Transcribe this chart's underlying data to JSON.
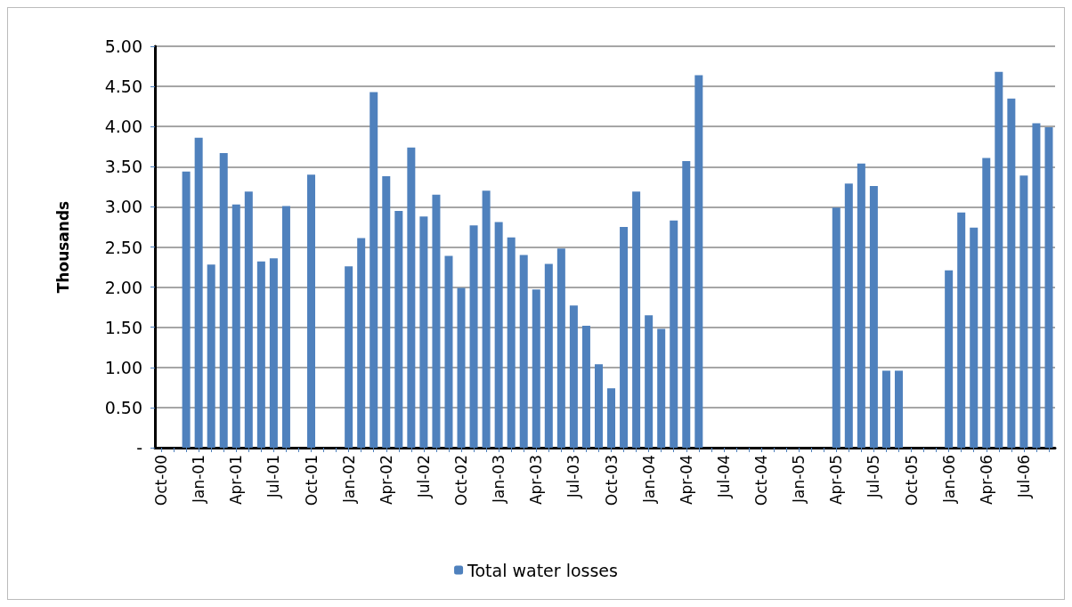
{
  "chart_data": {
    "type": "bar",
    "ylabel": "Thousands",
    "categories": [
      "Oct-00",
      null,
      null,
      "Jan-01",
      null,
      null,
      "Apr-01",
      null,
      null,
      "Jul-01",
      null,
      null,
      "Oct-01",
      null,
      null,
      "Jan-02",
      null,
      null,
      "Apr-02",
      null,
      null,
      "Jul-02",
      null,
      null,
      "Oct-02",
      null,
      null,
      "Jan-03",
      null,
      null,
      "Apr-03",
      null,
      null,
      "Jul-03",
      null,
      null,
      "Oct-03",
      null,
      null,
      "Jan-04",
      null,
      null,
      "Apr-04",
      null,
      null,
      "Jul-04",
      null,
      null,
      "Oct-04",
      null,
      null,
      "Jan-05",
      null,
      null,
      "Apr-05",
      null,
      null,
      "Jul-05",
      null,
      null,
      "Oct-05",
      null,
      null,
      "Jan-06",
      null,
      null,
      "Apr-06",
      null,
      null,
      "Jul-06",
      null,
      null
    ],
    "series": [
      {
        "name": "Total water losses",
        "color": "#4f81bd",
        "values": [
          null,
          null,
          3.44,
          3.86,
          2.28,
          3.67,
          3.03,
          3.19,
          2.32,
          2.36,
          3.01,
          null,
          3.4,
          null,
          null,
          2.26,
          2.61,
          4.43,
          3.38,
          2.95,
          3.74,
          2.88,
          3.15,
          2.39,
          1.99,
          2.77,
          3.2,
          2.81,
          2.62,
          2.4,
          1.97,
          2.29,
          2.48,
          1.77,
          1.52,
          1.04,
          0.74,
          2.75,
          3.19,
          1.65,
          1.48,
          2.83,
          3.57,
          4.64,
          null,
          null,
          null,
          null,
          null,
          null,
          null,
          null,
          null,
          null,
          2.99,
          3.29,
          3.54,
          3.26,
          0.96,
          0.96,
          null,
          null,
          null,
          2.21,
          2.93,
          2.74,
          3.61,
          4.68,
          4.35,
          3.39,
          4.04,
          3.99
        ]
      }
    ],
    "ylim": [
      0,
      5
    ],
    "yticks": [
      {
        "value": 0,
        "label": "-"
      },
      {
        "value": 0.5,
        "label": "0.50"
      },
      {
        "value": 1,
        "label": "1.00"
      },
      {
        "value": 1.5,
        "label": "1.50"
      },
      {
        "value": 2,
        "label": "2.00"
      },
      {
        "value": 2.5,
        "label": "2.50"
      },
      {
        "value": 3,
        "label": "3.00"
      },
      {
        "value": 3.5,
        "label": "3.50"
      },
      {
        "value": 4,
        "label": "4.00"
      },
      {
        "value": 4.5,
        "label": "4.50"
      },
      {
        "value": 5,
        "label": "5.00"
      }
    ],
    "grid": "y",
    "legend": "bottom"
  }
}
